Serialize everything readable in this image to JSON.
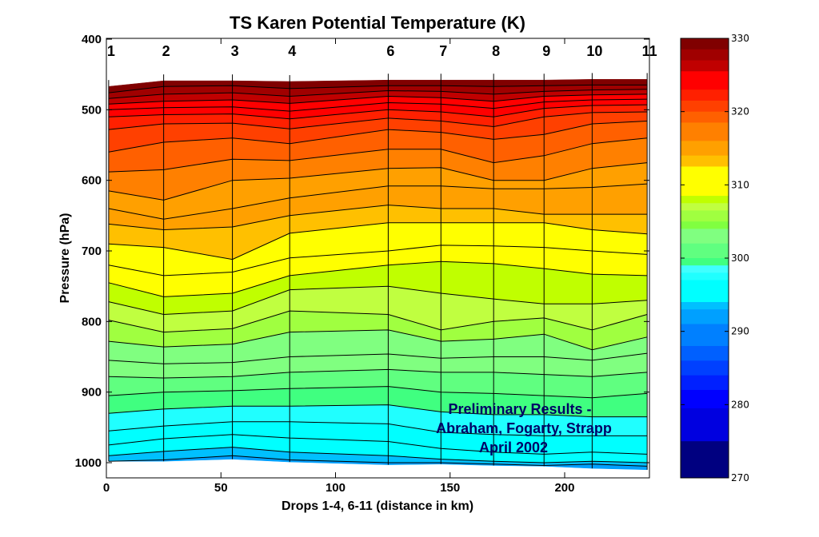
{
  "chart_data": {
    "type": "contourf",
    "title": "TS Karen Potential Temperature (K)",
    "xlabel": "Drops 1-4, 6-11 (distance in km)",
    "ylabel": "Pressure (hPa)",
    "xlim": [
      0,
      237
    ],
    "ylim": [
      1020,
      400
    ],
    "y_reversed": true,
    "xticks": [
      0,
      50,
      100,
      150,
      200
    ],
    "yticks": [
      400,
      500,
      600,
      700,
      800,
      900,
      1000
    ],
    "grid": false,
    "drops": [
      {
        "label": "1",
        "x": 1
      },
      {
        "label": "2",
        "x": 25
      },
      {
        "label": "3",
        "x": 55
      },
      {
        "label": "4",
        "x": 80
      },
      {
        "label": "6",
        "x": 123
      },
      {
        "label": "7",
        "x": 146
      },
      {
        "label": "8",
        "x": 169
      },
      {
        "label": "9",
        "x": 191
      },
      {
        "label": "10",
        "x": 212
      },
      {
        "label": "11",
        "x": 236
      }
    ],
    "top_pressure": [
      467,
      459,
      459,
      460,
      458,
      458,
      458,
      458,
      457,
      457
    ],
    "bottom_pressure": [
      998,
      998,
      995,
      999,
      1003,
      1002,
      1004,
      1005,
      1008,
      1010
    ],
    "contour_levels": [
      328.5,
      327,
      325.5,
      324,
      322.5,
      321,
      319.5,
      318,
      316.5,
      315,
      313.5,
      312,
      310.5,
      309,
      307.5,
      306,
      304.5,
      303,
      301.5,
      300,
      298.5,
      297,
      295.5,
      294,
      292.5,
      291,
      289.5,
      288
    ],
    "contours_hPa": [
      [
        476,
        467,
        466,
        470,
        466,
        466,
        467,
        466,
        465,
        465
      ],
      [
        484,
        478,
        476,
        481,
        473,
        474,
        478,
        474,
        472,
        471
      ],
      [
        492,
        488,
        486,
        491,
        481,
        483,
        488,
        481,
        479,
        478
      ],
      [
        500,
        497,
        496,
        502,
        490,
        492,
        498,
        489,
        486,
        485
      ],
      [
        510,
        507,
        506,
        513,
        500,
        503,
        510,
        498,
        494,
        493
      ],
      [
        528,
        520,
        519,
        527,
        512,
        516,
        524,
        510,
        504,
        503
      ],
      [
        560,
        546,
        540,
        548,
        528,
        532,
        542,
        535,
        520,
        516
      ],
      [
        588,
        585,
        570,
        572,
        556,
        556,
        575,
        565,
        548,
        540
      ],
      [
        615,
        628,
        600,
        597,
        583,
        582,
        600,
        600,
        583,
        575
      ],
      [
        640,
        655,
        640,
        625,
        608,
        608,
        612,
        612,
        610,
        605
      ],
      [
        662,
        670,
        666,
        650,
        635,
        640,
        640,
        648,
        648,
        648
      ],
      [
        690,
        695,
        712,
        675,
        660,
        660,
        660,
        660,
        670,
        676
      ],
      [
        720,
        735,
        730,
        710,
        700,
        692,
        693,
        695,
        700,
        705
      ],
      [
        745,
        765,
        760,
        735,
        720,
        715,
        718,
        725,
        733,
        735
      ],
      [
        772,
        790,
        785,
        755,
        750,
        760,
        768,
        775,
        775,
        770
      ],
      [
        798,
        815,
        810,
        785,
        790,
        812,
        800,
        795,
        812,
        790
      ],
      [
        828,
        836,
        832,
        815,
        812,
        828,
        825,
        818,
        840,
        822
      ],
      [
        855,
        860,
        858,
        850,
        846,
        852,
        850,
        850,
        855,
        845
      ],
      [
        878,
        880,
        878,
        872,
        868,
        872,
        872,
        875,
        878,
        872
      ],
      [
        905,
        900,
        898,
        895,
        892,
        900,
        902,
        905,
        908,
        902
      ],
      [
        930,
        924,
        920,
        920,
        918,
        928,
        932,
        932,
        935,
        935
      ],
      [
        955,
        948,
        942,
        942,
        945,
        957,
        960,
        962,
        962,
        962
      ],
      [
        975,
        966,
        960,
        965,
        970,
        980,
        985,
        988,
        985,
        988
      ],
      [
        990,
        984,
        978,
        985,
        990,
        995,
        998,
        1000,
        998,
        1000
      ],
      [
        998,
        996,
        990,
        996,
        1000,
        1000,
        1002,
        1004,
        1002,
        1005
      ]
    ],
    "band_values": [
      329,
      327.5,
      326,
      324.5,
      323,
      321.5,
      320,
      318.5,
      317,
      315.5,
      314,
      312.5,
      311,
      309.5,
      308,
      306.5,
      305,
      303.5,
      302,
      300.5,
      299,
      297.5,
      296,
      294.5,
      293,
      291.5
    ],
    "colorbar": {
      "min": 270,
      "max": 330,
      "ticks": [
        270,
        280,
        290,
        300,
        310,
        320,
        330
      ],
      "tick_labels": [
        "270",
        "280",
        "290",
        "300",
        "310",
        "320",
        "330"
      ],
      "bands": [
        {
          "from": 328.5,
          "to": 330,
          "color": "#800000"
        },
        {
          "from": 327,
          "to": 328.5,
          "color": "#a00000"
        },
        {
          "from": 325.5,
          "to": 327,
          "color": "#c00000"
        },
        {
          "from": 323,
          "to": 325.5,
          "color": "#ff0000"
        },
        {
          "from": 321.5,
          "to": 323,
          "color": "#ff2000"
        },
        {
          "from": 320,
          "to": 321.5,
          "color": "#ff4000"
        },
        {
          "from": 318.5,
          "to": 320,
          "color": "#ff6000"
        },
        {
          "from": 316,
          "to": 318.5,
          "color": "#ff8000"
        },
        {
          "from": 314,
          "to": 316,
          "color": "#ffa000"
        },
        {
          "from": 312.5,
          "to": 314,
          "color": "#ffc000"
        },
        {
          "from": 308.5,
          "to": 312.5,
          "color": "#ffff00"
        },
        {
          "from": 307.5,
          "to": 308.5,
          "color": "#c0ff00"
        },
        {
          "from": 306.5,
          "to": 307.5,
          "color": "#c0ff40"
        },
        {
          "from": 305,
          "to": 306.5,
          "color": "#a0ff40"
        },
        {
          "from": 304,
          "to": 305,
          "color": "#80ff40"
        },
        {
          "from": 302,
          "to": 304,
          "color": "#80ff80"
        },
        {
          "from": 300,
          "to": 302,
          "color": "#60ff80"
        },
        {
          "from": 299,
          "to": 300,
          "color": "#40ff80"
        },
        {
          "from": 298,
          "to": 299,
          "color": "#40ffff"
        },
        {
          "from": 297,
          "to": 298,
          "color": "#20ffff"
        },
        {
          "from": 294,
          "to": 297,
          "color": "#00ffff"
        },
        {
          "from": 293,
          "to": 294,
          "color": "#00c0ff"
        },
        {
          "from": 291,
          "to": 293,
          "color": "#00a0ff"
        },
        {
          "from": 288,
          "to": 291,
          "color": "#0080ff"
        },
        {
          "from": 286,
          "to": 288,
          "color": "#0060ff"
        },
        {
          "from": 284,
          "to": 286,
          "color": "#0040ff"
        },
        {
          "from": 282,
          "to": 284,
          "color": "#0020ff"
        },
        {
          "from": 279.5,
          "to": 282,
          "color": "#0000ff"
        },
        {
          "from": 275,
          "to": 279.5,
          "color": "#0000e0"
        },
        {
          "from": 270,
          "to": 275,
          "color": "#000080"
        }
      ]
    },
    "annotation": [
      "Preliminary Results -",
      "Abraham, Fogarty, Strapp",
      "April 2002"
    ]
  }
}
